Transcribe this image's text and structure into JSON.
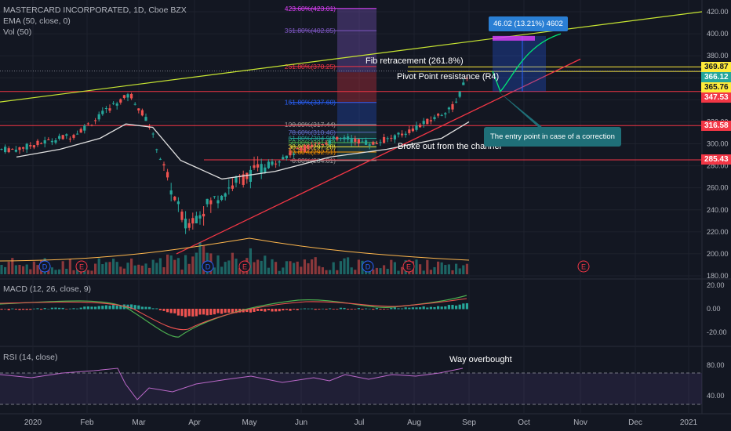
{
  "legend": {
    "title": "MASTERCARD INCORPORATED, 1D, Cboe BZX",
    "ema": "EMA (50, close, 0)",
    "vol": "Vol (50)",
    "macd": "MACD (12, 26, close, 9)",
    "rsi": "RSI (14, close)"
  },
  "annotations": {
    "fib": "Fib retracement (261.8%)",
    "pivot": "Pivot Point resistance (R4)",
    "channel": "Broke out from the channel",
    "entry": "The entry point in case of a correction",
    "overbought": "Way overbought",
    "measure": "46.02 (13.21%) 4602"
  },
  "price_axis": {
    "ticks": [
      "420.00",
      "400.00",
      "380.00",
      "360.00",
      "340.00",
      "320.00",
      "300.00",
      "280.00",
      "260.00",
      "240.00",
      "220.00",
      "200.00",
      "180.00"
    ],
    "macd_ticks": [
      "20.00",
      "0.00",
      "-20.00"
    ],
    "rsi_ticks": [
      "80.00",
      "40.00"
    ]
  },
  "price_tags": [
    {
      "label": "369.87",
      "bg": "#ffeb3b",
      "fg": "#131722"
    },
    {
      "label": "366.12",
      "bg": "#26a69a",
      "fg": "#ffffff"
    },
    {
      "label": "365.76",
      "bg": "#ffeb3b",
      "fg": "#131722"
    },
    {
      "label": "347.53",
      "bg": "#f23645",
      "fg": "#ffffff"
    },
    {
      "label": "316.58",
      "bg": "#f23645",
      "fg": "#ffffff"
    },
    {
      "label": "285.43",
      "bg": "#f23645",
      "fg": "#ffffff"
    }
  ],
  "time_axis": [
    "2020",
    "Feb",
    "Mar",
    "Apr",
    "May",
    "Jun",
    "Jul",
    "Aug",
    "Sep",
    "Oct",
    "Nov",
    "Dec",
    "2021"
  ],
  "fib_levels": [
    {
      "label": "423.60%(423.01)",
      "color": "#e040fb"
    },
    {
      "label": "361.80%(402.85)",
      "color": "#7e57c2"
    },
    {
      "label": "261.80%(370.25)",
      "color": "#f23645"
    },
    {
      "label": "161.80%(337.60)",
      "color": "#2962ff"
    },
    {
      "label": "100.00%(317.44)",
      "color": "#9e9e9e"
    },
    {
      "label": "78.60%(310.46)",
      "color": "#5c6bc0"
    },
    {
      "label": "61.80%(304.98)",
      "color": "#26a69a"
    },
    {
      "label": "50.00%(301.13)",
      "color": "#4caf50"
    },
    {
      "label": "38.20%(297.28)",
      "color": "#ffeb3b"
    },
    {
      "label": "23.60%(292.51)",
      "color": "#ff9800"
    },
    {
      "label": "0.00%(284.81)",
      "color": "#9e9e9e"
    }
  ],
  "events": [
    "D",
    "E",
    "D",
    "E",
    "D",
    "E",
    "E"
  ],
  "chart_data": {
    "type": "candlestick",
    "title": "MASTERCARD INCORPORATED, 1D, Cboe BZX",
    "x": [
      "Dec",
      "2020",
      "Feb",
      "Mar",
      "Apr",
      "May",
      "Jun",
      "Jul",
      "Aug",
      "Sep"
    ],
    "close_path": [
      [
        "Dec",
        295
      ],
      [
        "2020",
        302
      ],
      [
        "2020",
        308
      ],
      [
        "Feb",
        322
      ],
      [
        "Feb",
        335
      ],
      [
        "Feb",
        345
      ],
      [
        "Mar",
        320
      ],
      [
        "Mar",
        270
      ],
      [
        "Mar",
        225
      ],
      [
        "Apr",
        245
      ],
      [
        "Apr",
        265
      ],
      [
        "May",
        278
      ],
      [
        "May",
        290
      ],
      [
        "Jun",
        300
      ],
      [
        "Jun",
        305
      ],
      [
        "Jul",
        300
      ],
      [
        "Jul",
        308
      ],
      [
        "Aug",
        320
      ],
      [
        "Aug",
        335
      ],
      [
        "Sep",
        366
      ]
    ],
    "ema50": [
      [
        "Dec",
        288
      ],
      [
        "2020",
        295
      ],
      [
        "Feb",
        305
      ],
      [
        "Feb",
        318
      ],
      [
        "Mar",
        315
      ],
      [
        "Mar",
        285
      ],
      [
        "Apr",
        268
      ],
      [
        "May",
        275
      ],
      [
        "Jun",
        288
      ],
      [
        "Jul",
        295
      ],
      [
        "Aug",
        305
      ],
      [
        "Sep",
        320
      ]
    ],
    "price_range": [
      180,
      420
    ]
  }
}
